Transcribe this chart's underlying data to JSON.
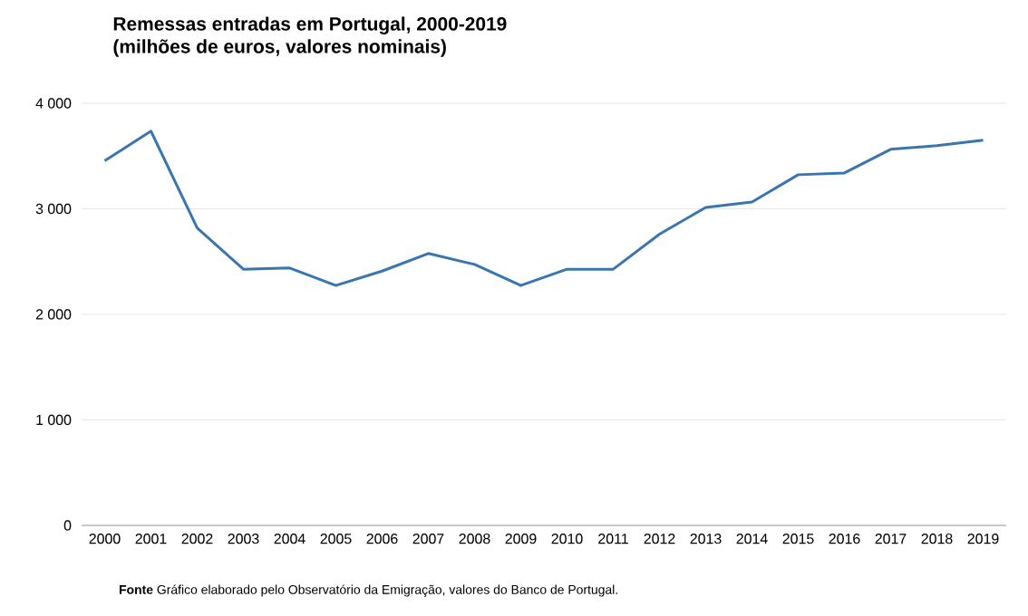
{
  "chart_data": {
    "type": "line",
    "title": "Remessas  entradas em Portugal, 2000-2019\n(milhões de euros, valores nominais)",
    "categories": [
      "2000",
      "2001",
      "2002",
      "2003",
      "2004",
      "2005",
      "2006",
      "2007",
      "2008",
      "2009",
      "2010",
      "2011",
      "2012",
      "2013",
      "2014",
      "2015",
      "2016",
      "2017",
      "2018",
      "2019"
    ],
    "series": [
      {
        "color": "#3a75b0",
        "values": [
          3455,
          3736,
          2818,
          2428,
          2439,
          2273,
          2410,
          2577,
          2473,
          2273,
          2428,
          2428,
          2760,
          3013,
          3065,
          3323,
          3340,
          3564,
          3598,
          3650
        ]
      }
    ],
    "ylim": [
      0,
      4000
    ],
    "yticks": [
      {
        "value": 0,
        "label": "0"
      },
      {
        "value": 1000,
        "label": "1 000"
      },
      {
        "value": 2000,
        "label": "2 000"
      },
      {
        "value": 3000,
        "label": "3 000"
      },
      {
        "value": 4000,
        "label": "4 000"
      }
    ],
    "grid": "y",
    "annotations": [
      "**Fonte**  Gráfico elaborado pelo Observatório da Emigração, valores do Banco de Portugal."
    ]
  }
}
